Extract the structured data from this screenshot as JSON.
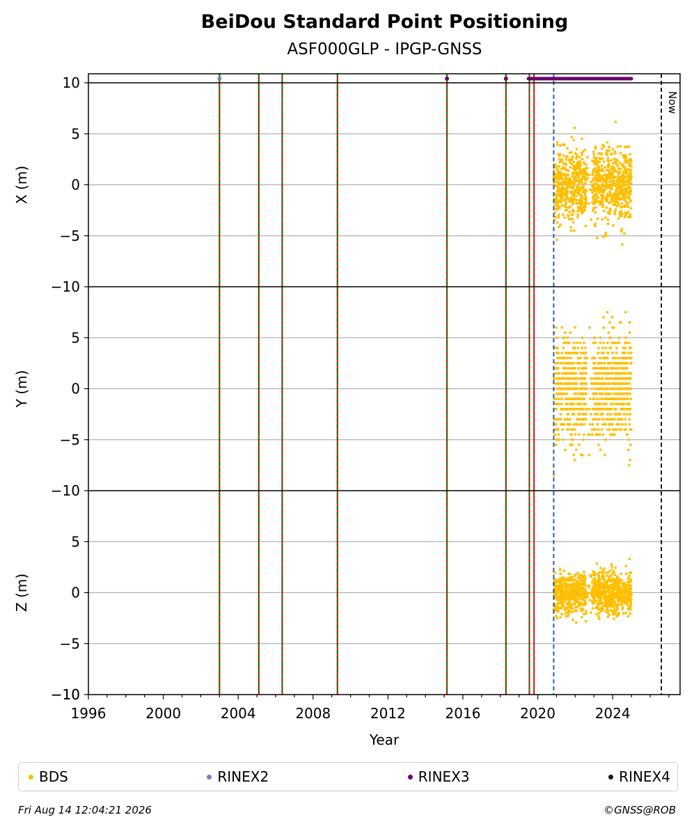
{
  "header": {
    "title": "BeiDou Standard Point Positioning",
    "subtitle": "ASF000GLP - IPGP-GNSS"
  },
  "footer": {
    "timestamp": "Fri Aug 14 12:04:21 2026",
    "copyright": "©GNSS@ROB"
  },
  "chart_data": {
    "type": "scatter",
    "title": "BeiDou Standard Point Positioning",
    "subtitle": "ASF000GLP - IPGP-GNSS",
    "xlabel": "Year",
    "xlim": [
      1996,
      2027.6
    ],
    "x_ticks": [
      "1996",
      "2000",
      "2004",
      "2008",
      "2012",
      "2016",
      "2020",
      "2024"
    ],
    "panels": [
      {
        "ylabel": "X (m)",
        "ylim": [
          -10,
          10
        ],
        "y_ticks": [
          "10",
          "5",
          "0",
          "−5",
          "−10"
        ],
        "y_tick_values": [
          10,
          5,
          0,
          -5,
          -10
        ]
      },
      {
        "ylabel": "Y (m)",
        "ylim": [
          -10,
          10
        ],
        "y_ticks": [
          "5",
          "0",
          "−5",
          "−10"
        ],
        "y_tick_values": [
          5,
          0,
          -5,
          -10
        ]
      },
      {
        "ylabel": "Z (m)",
        "ylim": [
          -10,
          10
        ],
        "y_ticks": [
          "5",
          "0",
          "−5",
          "−10"
        ],
        "y_tick_values": [
          5,
          0,
          -5,
          -10
        ]
      }
    ],
    "grid": "horizontal",
    "now_label": "Now",
    "now_year": 2026.6,
    "equipment_changes": [
      2003.0,
      2005.1,
      2006.35,
      2009.3,
      2015.15,
      2018.3,
      2019.55
    ],
    "red_event_line": 2019.8,
    "blue_dashed_line": 2020.85,
    "data_span": [
      2020.85,
      2025.0
    ],
    "rinex_marks": {
      "RINEX2": [
        2003.0
      ],
      "RINEX3": [
        2015.15,
        2018.3
      ],
      "RINEX3_continuous": [
        2019.5,
        2025.0
      ]
    },
    "series": [
      {
        "name": "BDS",
        "color": "#ffbf00",
        "panels": {
          "X": {
            "center": 0,
            "spread": 4.5
          },
          "Y": {
            "center": 0,
            "spread": 6.5
          },
          "Z": {
            "center": 0,
            "spread": 2.5
          }
        }
      },
      {
        "name": "RINEX2",
        "color": "#7b7bbd"
      },
      {
        "name": "RINEX3",
        "color": "#6b006b"
      },
      {
        "name": "RINEX4",
        "color": "#2a0a1a"
      }
    ],
    "legend_position": "bottom"
  }
}
